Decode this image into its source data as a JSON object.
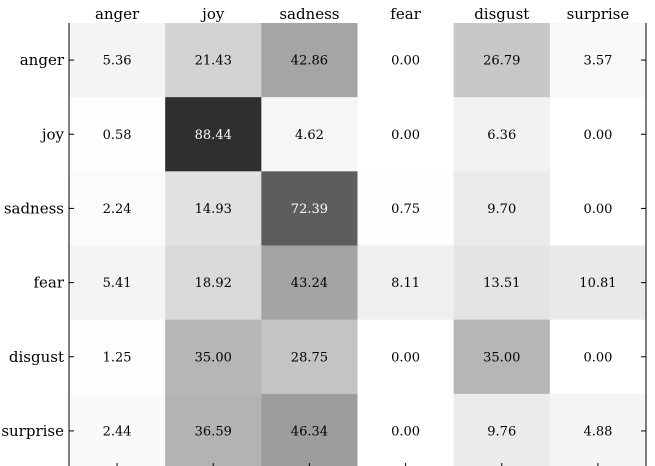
{
  "chart_data": {
    "type": "heatmap",
    "title": "",
    "xlabel": "",
    "ylabel": "",
    "x_categories": [
      "anger",
      "joy",
      "sadness",
      "fear",
      "disgust",
      "surprise"
    ],
    "y_categories": [
      "anger",
      "joy",
      "sadness",
      "fear",
      "disgust",
      "surprise"
    ],
    "x_tick_position": "top",
    "colormap": "white-to-black",
    "value_range": [
      0,
      100
    ],
    "values": [
      [
        5.36,
        21.43,
        42.86,
        0.0,
        26.79,
        3.57
      ],
      [
        0.58,
        88.44,
        4.62,
        0.0,
        6.36,
        0.0
      ],
      [
        2.24,
        14.93,
        72.39,
        0.75,
        9.7,
        0.0
      ],
      [
        5.41,
        18.92,
        43.24,
        8.11,
        13.51,
        10.81
      ],
      [
        1.25,
        35.0,
        28.75,
        0.0,
        35.0,
        0.0
      ],
      [
        2.44,
        36.59,
        46.34,
        0.0,
        9.76,
        4.88
      ]
    ],
    "value_labels": [
      [
        "5.36",
        "21.43",
        "42.86",
        "0.00",
        "26.79",
        "3.57"
      ],
      [
        "0.58",
        "88.44",
        "4.62",
        "0.00",
        "6.36",
        "0.00"
      ],
      [
        "2.24",
        "14.93",
        "72.39",
        "0.75",
        "9.70",
        "0.00"
      ],
      [
        "5.41",
        "18.92",
        "43.24",
        "8.11",
        "13.51",
        "10.81"
      ],
      [
        "1.25",
        "35.00",
        "28.75",
        "0.00",
        "35.00",
        "0.00"
      ],
      [
        "2.44",
        "36.59",
        "46.34",
        "0.00",
        "9.76",
        "4.88"
      ]
    ],
    "grid": false,
    "legend": "none"
  }
}
